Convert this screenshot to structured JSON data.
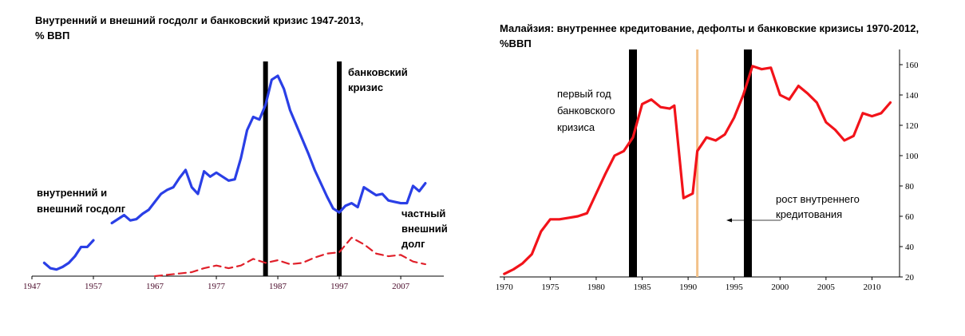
{
  "chart_data": [
    {
      "type": "line",
      "title": "Внутренний и внешний госдолг и банковский кризис 1947-2013, % ВВП",
      "title_lines": [
        "Внутренний и внешний госдолг и банковский кризис 1947-2013,",
        "% ВВП"
      ],
      "xlim": [
        1947,
        2014
      ],
      "ylim": [
        0,
        160
      ],
      "x_ticks": [
        1947,
        1957,
        1967,
        1977,
        1987,
        1997,
        2007
      ],
      "tick_color": "#4a0a2a",
      "crisis_years": [
        1985,
        1997
      ],
      "grid": false,
      "legend": "none",
      "series": [
        {
          "color": "#2a3fe6",
          "style": "solid",
          "segments": [
            {
              "x": [
                1949,
                1950,
                1951,
                1952,
                1953,
                1954,
                1955,
                1956,
                1957
              ],
              "y": [
                10,
                6,
                5,
                7,
                10,
                15,
                22,
                22,
                27
              ]
            },
            {
              "x": [
                1960,
                1961,
                1962,
                1963,
                1964,
                1965,
                1966,
                1967,
                1968,
                1969,
                1970,
                1971,
                1972,
                1973,
                1974,
                1975,
                1976,
                1977,
                1978,
                1979,
                1980,
                1981,
                1982,
                1983,
                1984,
                1985,
                1986,
                1987,
                1988,
                1989,
                1990,
                1991,
                1992,
                1993,
                1994,
                1995,
                1996,
                1997,
                1998,
                1999,
                2000,
                2001,
                2002,
                2003,
                2004,
                2005,
                2006,
                2007,
                2008,
                2009,
                2010,
                2011
              ],
              "y": [
                40,
                43,
                46,
                42,
                43,
                47,
                50,
                56,
                62,
                65,
                67,
                74,
                80,
                67,
                62,
                79,
                75,
                78,
                75,
                72,
                73,
                89,
                110,
                120,
                118,
                129,
                148,
                151,
                141,
                125,
                114,
                103,
                92,
                80,
                70,
                60,
                51,
                48,
                53,
                55,
                52,
                67,
                64,
                61,
                62,
                57,
                56,
                55,
                55,
                68,
                64,
                70
              ]
            }
          ]
        },
        {
          "color": "#e0202a",
          "style": "dashed",
          "segments": [
            {
              "x": [
                1967,
                1969,
                1971,
                1973,
                1975,
                1977,
                1979,
                1981,
                1983,
                1985,
                1987,
                1989,
                1991,
                1993,
                1995,
                1997,
                1999,
                2001,
                2003,
                2005,
                2007,
                2009,
                2011
              ],
              "y": [
                0,
                1,
                2,
                3,
                6,
                8,
                6,
                8,
                13,
                10,
                12,
                9,
                10,
                14,
                17,
                18,
                29,
                24,
                17,
                15,
                16,
                11,
                9
              ]
            }
          ]
        }
      ],
      "annotations": [
        {
          "lines": [
            "банковский",
            "кризис"
          ]
        },
        {
          "lines": [
            "внутренний и",
            "внешний госдолг"
          ]
        },
        {
          "lines": [
            "частный",
            "внешний",
            "долг"
          ]
        }
      ]
    },
    {
      "type": "line",
      "title": "Малайзия: внутреннее кредитование, дефолты и банковские кризисы 1970-2012, %ВВП",
      "title_lines": [
        "Малайзия: внутреннее кредитование, дефолты и банковские кризисы 1970-2012,",
        "%ВВП"
      ],
      "xlim": [
        1969.5,
        2013
      ],
      "ylim": [
        20,
        170
      ],
      "x_ticks": [
        1970,
        1975,
        1980,
        1985,
        1990,
        1995,
        2000,
        2005,
        2010
      ],
      "y_ticks": [
        20,
        40,
        60,
        80,
        100,
        120,
        140,
        160
      ],
      "y_axis_side": "right",
      "crisis_years": [
        1984,
        1996.5
      ],
      "default_year": 1991,
      "default_color": "#f3c28a",
      "grid": false,
      "legend": "none",
      "series": [
        {
          "color": "#f2131a",
          "style": "solid",
          "x": [
            1970,
            1971,
            1972,
            1973,
            1974,
            1975,
            1976,
            1977,
            1978,
            1979,
            1980,
            1981,
            1982,
            1983,
            1984,
            1985,
            1986,
            1987,
            1988,
            1988.5,
            1989.5,
            1990.5,
            1991,
            1992,
            1993,
            1994,
            1995,
            1996,
            1997,
            1998,
            1999,
            2000,
            2001,
            2002,
            2003,
            2004,
            2005,
            2006,
            2007,
            2008,
            2009,
            2010,
            2011,
            2012
          ],
          "y": [
            22,
            25,
            29,
            35,
            50,
            58,
            58,
            59,
            60,
            62,
            75,
            88,
            100,
            103,
            112,
            134,
            137,
            132,
            131,
            133,
            72,
            75,
            103,
            112,
            110,
            114,
            125,
            140,
            159,
            157,
            158,
            140,
            137,
            146,
            141,
            135,
            122,
            117,
            110,
            113,
            128,
            126,
            128,
            135
          ]
        }
      ],
      "annotations": [
        {
          "lines": [
            "первый год",
            "банковского",
            "кризиса"
          ]
        },
        {
          "lines": [
            "рост внутреннего",
            "кредитования"
          ]
        }
      ]
    }
  ]
}
